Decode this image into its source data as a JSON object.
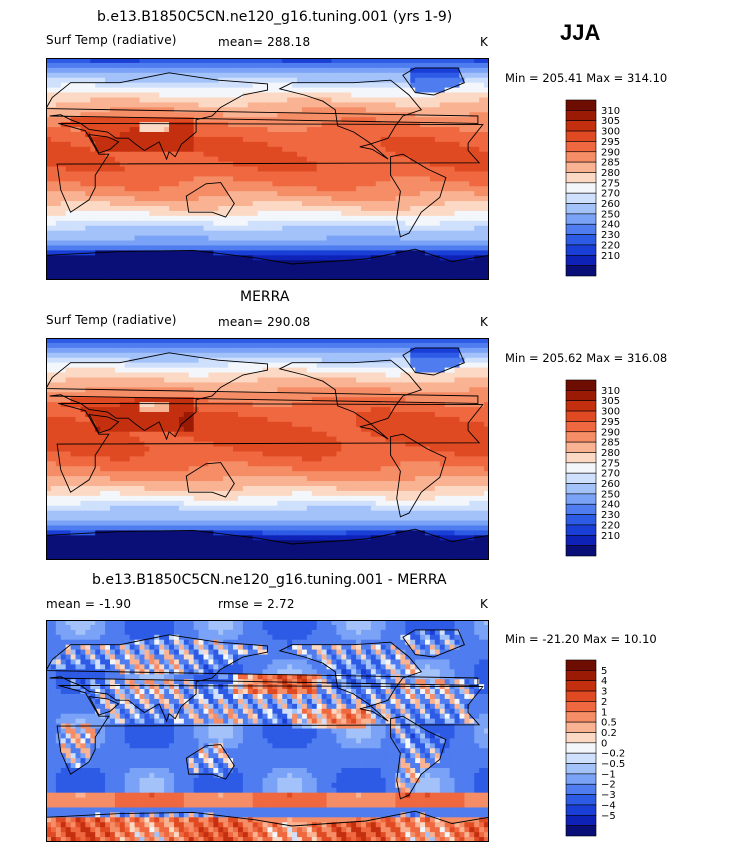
{
  "season": "JJA",
  "colors": {
    "temp": [
      "#0a0f78",
      "#0e22b8",
      "#1a3fd6",
      "#2d5be6",
      "#4f7df0",
      "#7aa2f6",
      "#a3c2fa",
      "#cfe0fc",
      "#f3f6fa",
      "#fbd9c4",
      "#f9b393",
      "#f58d66",
      "#ef6840",
      "#e04a22",
      "#c4300f",
      "#9a1a05",
      "#6e0e02"
    ],
    "diff": [
      "#0a0f78",
      "#0e22b8",
      "#1a3fd6",
      "#2d5be6",
      "#4f7df0",
      "#7aa2f6",
      "#a3c2fa",
      "#cfe0fc",
      "#f3f6fa",
      "#fbd9c4",
      "#f9b393",
      "#f58d66",
      "#ef6840",
      "#e04a22",
      "#c4300f",
      "#9a1a05",
      "#6e0e02"
    ]
  },
  "panels": [
    {
      "title": "b.e13.B1850C5CN.ne120_g16.tuning.001 (yrs 1-9)",
      "variable": "Surf Temp (radiative)",
      "stat1": "mean=  288.18",
      "stat2": "",
      "units": "K",
      "minmax": "Min = 205.41 Max = 314.10"
    },
    {
      "title": "MERRA",
      "variable": "Surf Temp (radiative)",
      "stat1": "mean=  290.08",
      "stat2": "",
      "units": "K",
      "minmax": "Min = 205.62 Max = 316.08"
    },
    {
      "title": "b.e13.B1850C5CN.ne120_g16.tuning.001 - MERRA",
      "variable": "",
      "stat1": "mean =   -1.90",
      "stat2": "rmse =    2.72",
      "units": "K",
      "minmax": "Min = -21.20 Max =  10.10"
    }
  ],
  "chart_data": [
    {
      "type": "heatmap",
      "title": "b.e13.B1850C5CN.ne120_g16.tuning.001 (yrs 1-9)",
      "variable": "Surf Temp (radiative)",
      "units": "K",
      "mean": 288.18,
      "min": 205.41,
      "max": 314.1,
      "colorbar_levels": [
        "310",
        "305",
        "300",
        "295",
        "290",
        "285",
        "280",
        "275",
        "270",
        "260",
        "250",
        "240",
        "230",
        "220",
        "210"
      ]
    },
    {
      "type": "heatmap",
      "title": "MERRA",
      "variable": "Surf Temp (radiative)",
      "units": "K",
      "mean": 290.08,
      "min": 205.62,
      "max": 316.08,
      "colorbar_levels": [
        "310",
        "305",
        "300",
        "295",
        "290",
        "285",
        "280",
        "275",
        "270",
        "260",
        "250",
        "240",
        "230",
        "220",
        "210"
      ]
    },
    {
      "type": "heatmap",
      "title": "b.e13.B1850C5CN.ne120_g16.tuning.001 - MERRA",
      "units": "K",
      "mean": -1.9,
      "rmse": 2.72,
      "min": -21.2,
      "max": 10.1,
      "colorbar_levels": [
        "5",
        "4",
        "3",
        "2",
        "1",
        "0.5",
        "0.2",
        "0",
        "−0.2",
        "−0.5",
        "−1",
        "−2",
        "−3",
        "−4",
        "−5"
      ]
    }
  ]
}
